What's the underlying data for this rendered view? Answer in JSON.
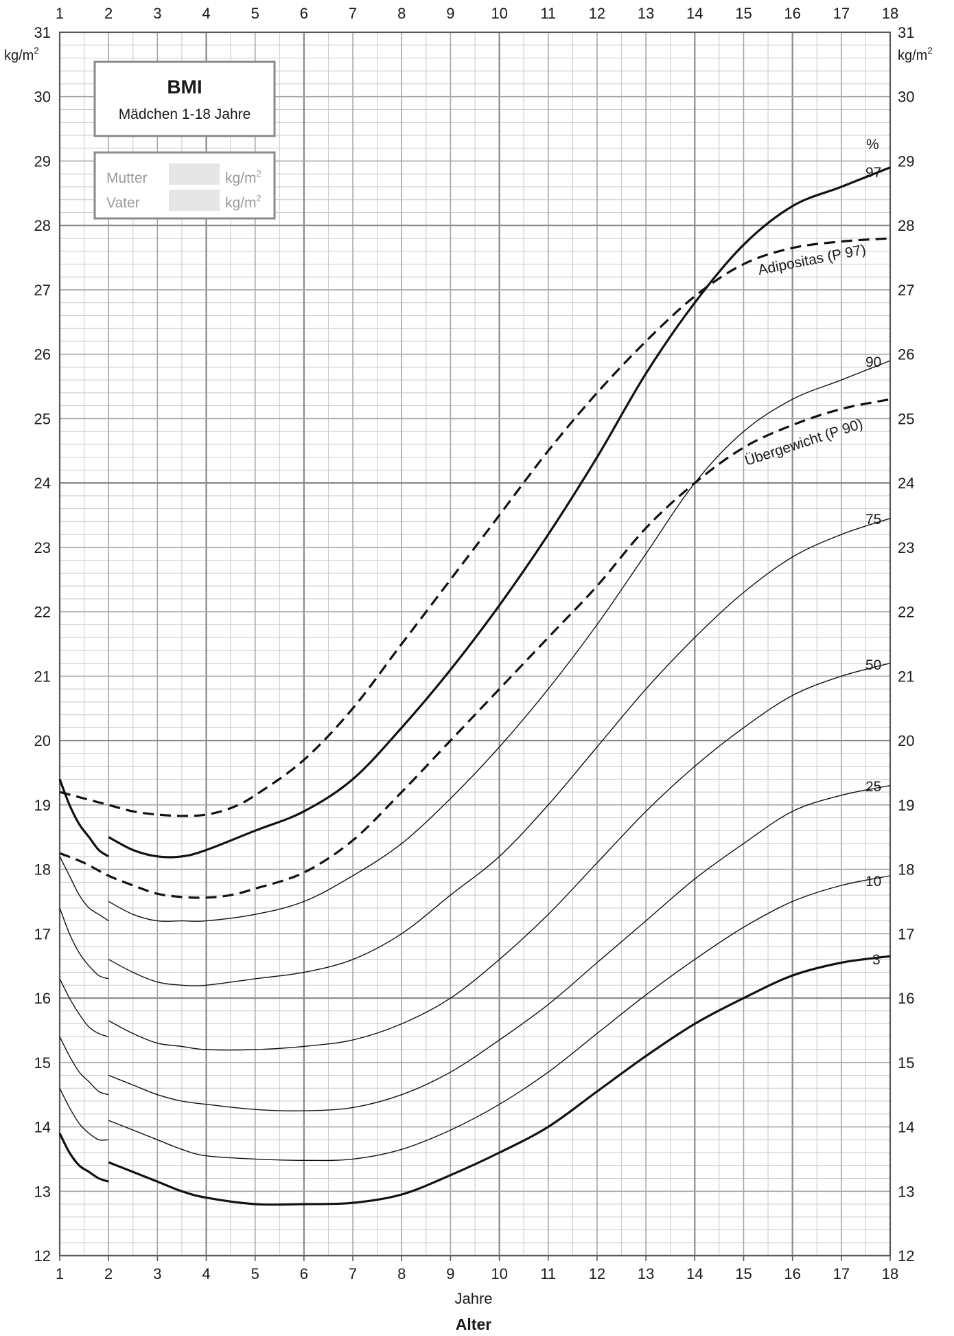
{
  "chart_data": {
    "type": "line",
    "title": "BMI",
    "subtitle": "Mädchen 1-18 Jahre",
    "xlabel": "Jahre",
    "xlabel_bold": "Alter",
    "ylabel": "kg/m2",
    "y_unit_left": "kg/m",
    "y_unit_right": "kg/m",
    "y_unit_sup": "2",
    "percent_symbol": "%",
    "xlim": [
      1,
      18
    ],
    "ylim": [
      12,
      31
    ],
    "x_ticks": [
      "1",
      "2",
      "3",
      "4",
      "5",
      "6",
      "7",
      "8",
      "9",
      "10",
      "11",
      "12",
      "13",
      "14",
      "15",
      "16",
      "17",
      "18"
    ],
    "y_ticks": [
      "12",
      "13",
      "14",
      "15",
      "16",
      "17",
      "18",
      "19",
      "20",
      "21",
      "22",
      "23",
      "24",
      "25",
      "26",
      "27",
      "28",
      "29",
      "30",
      "31"
    ],
    "grid": true,
    "parents": {
      "mother_label": "Mutter",
      "father_label": "Vater",
      "unit": "kg/m",
      "unit_sup": "2"
    },
    "series": [
      {
        "name": "97",
        "style": "thick",
        "x": [
          1.0,
          1.2,
          1.4,
          1.6,
          1.8,
          2.0
        ],
        "y": [
          19.4,
          19.0,
          18.7,
          18.5,
          18.3,
          18.2
        ],
        "x2": [
          2.0,
          2.5,
          3.0,
          3.5,
          4.0,
          5.0,
          6.0,
          7.0,
          8.0,
          9.0,
          10.0,
          11.0,
          12.0,
          13.0,
          14.0,
          15.0,
          16.0,
          17.0,
          18.0
        ],
        "y2": [
          18.5,
          18.3,
          18.2,
          18.2,
          18.3,
          18.6,
          18.9,
          19.4,
          20.2,
          21.1,
          22.1,
          23.2,
          24.4,
          25.7,
          26.8,
          27.7,
          28.3,
          28.6,
          28.9
        ]
      },
      {
        "name": "90",
        "style": "thin",
        "x": [
          1.0,
          1.2,
          1.4,
          1.6,
          1.8,
          2.0
        ],
        "y": [
          18.2,
          17.9,
          17.6,
          17.4,
          17.3,
          17.2
        ],
        "x2": [
          2.0,
          2.5,
          3.0,
          3.5,
          4.0,
          5.0,
          6.0,
          7.0,
          8.0,
          9.0,
          10.0,
          11.0,
          12.0,
          13.0,
          14.0,
          15.0,
          16.0,
          17.0,
          18.0
        ],
        "y2": [
          17.5,
          17.3,
          17.2,
          17.2,
          17.2,
          17.3,
          17.5,
          17.9,
          18.4,
          19.1,
          19.9,
          20.8,
          21.8,
          22.9,
          24.0,
          24.8,
          25.3,
          25.6,
          25.9
        ]
      },
      {
        "name": "75",
        "style": "thin",
        "x": [
          1.0,
          1.2,
          1.4,
          1.6,
          1.8,
          2.0
        ],
        "y": [
          17.4,
          17.0,
          16.7,
          16.5,
          16.35,
          16.3
        ],
        "x2": [
          2.0,
          2.5,
          3.0,
          3.5,
          4.0,
          5.0,
          6.0,
          7.0,
          8.0,
          9.0,
          10.0,
          11.0,
          12.0,
          13.0,
          14.0,
          15.0,
          16.0,
          17.0,
          18.0
        ],
        "y2": [
          16.6,
          16.4,
          16.25,
          16.2,
          16.2,
          16.3,
          16.4,
          16.6,
          17.0,
          17.6,
          18.2,
          19.0,
          19.9,
          20.8,
          21.6,
          22.3,
          22.85,
          23.2,
          23.45
        ]
      },
      {
        "name": "50",
        "style": "thin",
        "x": [
          1.0,
          1.2,
          1.4,
          1.6,
          1.8,
          2.0
        ],
        "y": [
          16.3,
          16.0,
          15.75,
          15.55,
          15.45,
          15.4
        ],
        "x2": [
          2.0,
          2.5,
          3.0,
          3.5,
          4.0,
          5.0,
          6.0,
          7.0,
          8.0,
          9.0,
          10.0,
          11.0,
          12.0,
          13.0,
          14.0,
          15.0,
          16.0,
          17.0,
          18.0
        ],
        "y2": [
          15.65,
          15.45,
          15.3,
          15.25,
          15.2,
          15.2,
          15.25,
          15.35,
          15.6,
          16.0,
          16.6,
          17.3,
          18.1,
          18.9,
          19.6,
          20.2,
          20.7,
          21.0,
          21.2
        ]
      },
      {
        "name": "25",
        "style": "thin",
        "x": [
          1.0,
          1.2,
          1.4,
          1.6,
          1.8,
          2.0
        ],
        "y": [
          15.4,
          15.1,
          14.85,
          14.7,
          14.55,
          14.5
        ],
        "x2": [
          2.0,
          2.5,
          3.0,
          3.5,
          4.0,
          5.0,
          6.0,
          7.0,
          8.0,
          9.0,
          10.0,
          11.0,
          12.0,
          13.0,
          14.0,
          15.0,
          16.0,
          17.0,
          18.0
        ],
        "y2": [
          14.8,
          14.65,
          14.5,
          14.4,
          14.35,
          14.27,
          14.25,
          14.3,
          14.5,
          14.85,
          15.35,
          15.9,
          16.55,
          17.2,
          17.85,
          18.4,
          18.9,
          19.15,
          19.3
        ]
      },
      {
        "name": "10",
        "style": "thin",
        "x": [
          1.0,
          1.2,
          1.4,
          1.6,
          1.8,
          2.0
        ],
        "y": [
          14.6,
          14.3,
          14.05,
          13.9,
          13.8,
          13.8
        ],
        "x2": [
          2.0,
          2.5,
          3.0,
          3.5,
          4.0,
          5.0,
          6.0,
          7.0,
          8.0,
          9.0,
          10.0,
          11.0,
          12.0,
          13.0,
          14.0,
          15.0,
          16.0,
          17.0,
          18.0
        ],
        "y2": [
          14.1,
          13.95,
          13.8,
          13.65,
          13.55,
          13.5,
          13.48,
          13.5,
          13.65,
          13.95,
          14.35,
          14.85,
          15.45,
          16.05,
          16.6,
          17.1,
          17.5,
          17.75,
          17.9
        ]
      },
      {
        "name": "3",
        "style": "thick",
        "x": [
          1.0,
          1.2,
          1.4,
          1.6,
          1.8,
          2.0
        ],
        "y": [
          13.9,
          13.6,
          13.4,
          13.3,
          13.2,
          13.15
        ],
        "x2": [
          2.0,
          2.5,
          3.0,
          3.5,
          4.0,
          5.0,
          6.0,
          7.0,
          8.0,
          9.0,
          10.0,
          11.0,
          12.0,
          13.0,
          14.0,
          15.0,
          16.0,
          17.0,
          18.0
        ],
        "y2": [
          13.45,
          13.3,
          13.15,
          13.0,
          12.9,
          12.8,
          12.8,
          12.82,
          12.95,
          13.25,
          13.6,
          14.0,
          14.55,
          15.1,
          15.6,
          16.0,
          16.35,
          16.55,
          16.65
        ]
      },
      {
        "name": "Adipositas (P 97)",
        "style": "dashed",
        "x": [
          1.0,
          1.5,
          2.0,
          2.5,
          3.0,
          3.5,
          4.0,
          4.5,
          5.0,
          6.0,
          7.0,
          8.0,
          9.0,
          10.0,
          11.0,
          12.0,
          13.0,
          14.0,
          15.0,
          16.0,
          17.0,
          18.0
        ],
        "y": [
          19.2,
          19.1,
          19.0,
          18.9,
          18.85,
          18.83,
          18.85,
          18.95,
          19.15,
          19.7,
          20.5,
          21.5,
          22.5,
          23.5,
          24.5,
          25.4,
          26.2,
          26.9,
          27.4,
          27.65,
          27.75,
          27.8
        ]
      },
      {
        "name": "Übergewicht (P 90)",
        "style": "dashed",
        "x": [
          1.0,
          1.5,
          2.0,
          2.5,
          3.0,
          3.5,
          4.0,
          4.5,
          5.0,
          6.0,
          7.0,
          8.0,
          9.0,
          10.0,
          11.0,
          12.0,
          13.0,
          14.0,
          15.0,
          16.0,
          17.0,
          18.0
        ],
        "y": [
          18.25,
          18.1,
          17.9,
          17.75,
          17.62,
          17.57,
          17.56,
          17.6,
          17.7,
          17.95,
          18.45,
          19.2,
          20.0,
          20.8,
          21.6,
          22.4,
          23.3,
          24.0,
          24.55,
          24.9,
          25.15,
          25.3
        ]
      }
    ]
  }
}
